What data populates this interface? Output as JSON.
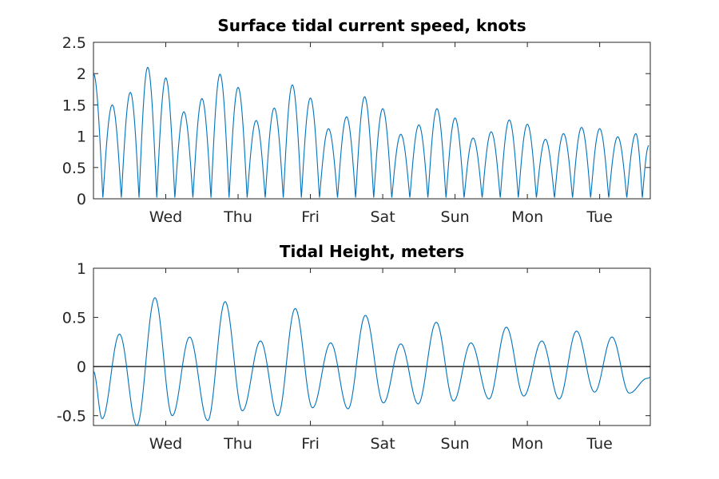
{
  "chart_data": [
    {
      "type": "line",
      "title": "Surface tidal current speed, knots",
      "xlabel": "",
      "ylabel": "",
      "xlim": [
        0,
        7.7
      ],
      "ylim": [
        0,
        2.5
      ],
      "yticks": [
        0,
        0.5,
        1,
        1.5,
        2,
        2.5
      ],
      "ytick_labels": [
        "0",
        "0.5",
        "1",
        "1.5",
        "2",
        "2.5"
      ],
      "xticks": [
        1,
        2,
        3,
        4,
        5,
        6,
        7
      ],
      "xtick_labels": [
        "Wed",
        "Thu",
        "Fri",
        "Sat",
        "Sun",
        "Mon",
        "Tue"
      ],
      "grid": false,
      "color": "#0072BD",
      "series": [
        {
          "x": [
            0.0,
            0.26,
            0.51,
            0.75,
            1.0,
            1.25,
            1.5,
            1.75,
            2.0,
            2.25,
            2.5,
            2.75,
            3.0,
            3.25,
            3.5,
            3.75,
            4.0,
            4.25,
            4.5,
            4.75,
            5.0,
            5.25,
            5.5,
            5.75,
            6.0,
            6.25,
            6.5,
            6.75,
            7.0,
            7.25,
            7.5,
            7.68
          ],
          "values": [
            2.0,
            1.5,
            1.7,
            2.1,
            1.93,
            1.39,
            1.6,
            1.99,
            1.78,
            1.25,
            1.45,
            1.82,
            1.61,
            1.12,
            1.31,
            1.63,
            1.44,
            1.03,
            1.18,
            1.44,
            1.29,
            0.97,
            1.07,
            1.26,
            1.19,
            0.95,
            1.04,
            1.14,
            1.12,
            0.99,
            1.04,
            0.85
          ]
        }
      ]
    },
    {
      "type": "line",
      "title": "Tidal Height, meters",
      "xlabel": "",
      "ylabel": "",
      "xlim": [
        0,
        7.7
      ],
      "ylim": [
        -0.6,
        1.0
      ],
      "yticks": [
        -0.5,
        0,
        0.5,
        1
      ],
      "ytick_labels": [
        "-0.5",
        "0",
        "0.5",
        "1"
      ],
      "xticks": [
        1,
        2,
        3,
        4,
        5,
        6,
        7
      ],
      "xtick_labels": [
        "Wed",
        "Thu",
        "Fri",
        "Sat",
        "Sun",
        "Mon",
        "Tue"
      ],
      "grid": false,
      "color": "#0072BD",
      "zero_line": 0,
      "series": [
        {
          "x": [
            0.0,
            0.12,
            0.36,
            0.6,
            0.85,
            1.09,
            1.33,
            1.58,
            1.82,
            2.06,
            2.31,
            2.55,
            2.79,
            3.03,
            3.28,
            3.52,
            3.76,
            4.01,
            4.25,
            4.49,
            4.74,
            4.98,
            5.22,
            5.47,
            5.71,
            5.95,
            6.2,
            6.44,
            6.68,
            6.93,
            7.17,
            7.41,
            7.66,
            7.7
          ],
          "values": [
            -0.05,
            -0.53,
            0.33,
            -0.6,
            0.7,
            -0.5,
            0.3,
            -0.55,
            0.66,
            -0.45,
            0.26,
            -0.5,
            0.59,
            -0.42,
            0.24,
            -0.43,
            0.52,
            -0.37,
            0.23,
            -0.38,
            0.45,
            -0.35,
            0.24,
            -0.33,
            0.4,
            -0.3,
            0.26,
            -0.33,
            0.36,
            -0.26,
            0.3,
            -0.27,
            -0.12,
            -0.11
          ]
        }
      ]
    }
  ]
}
